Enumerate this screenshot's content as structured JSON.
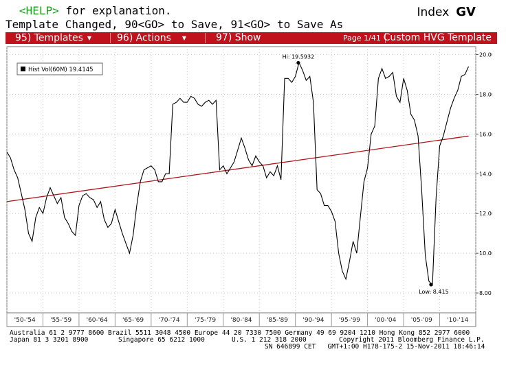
{
  "header": {
    "help_key": "<HELP>",
    "help_rest": " for explanation.",
    "status_line": "Template Changed, 90<GO> to Save, 91<GO> to Save As",
    "index_label": "Index",
    "ticker": "GV"
  },
  "menu": {
    "templates": "95) Templates",
    "actions": "96) Actions",
    "show": "97) Show",
    "page": "Page 1/41",
    "template_name": "Custom HVG Template"
  },
  "footer": {
    "line1": "Australia 61 2 9777 8600 Brazil 5511 3048 4500 Europe 44 20 7330 7500 Germany 49 69 9204 1210 Hong Kong 852 2977 6000",
    "line2a": "Japan 81 3 3201 8900",
    "line2b": "Singapore 65 6212 1000",
    "line2c": "U.S. 1 212 318 2000",
    "line2d": "Copyright 2011 Bloomberg Finance L.P.",
    "line3": "SN 646899 CET   GMT+1:00 H178-175-2 15-Nov-2011 18:46:14"
  },
  "colors": {
    "menubar": "#c0121c",
    "help": "#17a117",
    "trend": "#b0151b",
    "series": "#000000"
  },
  "chart_data": {
    "type": "line",
    "legend": {
      "label": "Hist Vol(60M)",
      "value": "19.4145",
      "placement": "top-left"
    },
    "xlim": [
      1950,
      2015
    ],
    "ylim": [
      7.0,
      20.4
    ],
    "yticks": [
      8.0,
      10.0,
      12.0,
      14.0,
      16.0,
      18.0,
      20.0
    ],
    "ytick_labels": [
      "8.00",
      "10.00",
      "12.00",
      "14.00",
      "16.00",
      "18.00",
      "20.00"
    ],
    "xticks": [
      1950,
      1955,
      1960,
      1965,
      1970,
      1975,
      1980,
      1985,
      1990,
      1995,
      2000,
      2005,
      2010,
      2015
    ],
    "xtick_labels": [
      "'50-'54",
      "'55-'59",
      "'60-'64",
      "'65-'69",
      "'70-'74",
      "'75-'79",
      "'80-'84",
      "'85-'89",
      "'90-'94",
      "'95-'99",
      "'00-'04",
      "'05-'09",
      "'10-'14"
    ],
    "grid": true,
    "annotations": [
      {
        "text": "Hi: 19.5932",
        "x": 1990.4,
        "y": 19.59
      },
      {
        "text": "Low: 8.415",
        "x": 2008.8,
        "y": 8.42
      }
    ],
    "trend": {
      "x": [
        1950,
        2014
      ],
      "y": [
        12.6,
        15.9
      ]
    },
    "series": [
      {
        "x": [
          1950.0,
          1950.5,
          1951.0,
          1951.5,
          1952.0,
          1952.5,
          1953.0,
          1953.5,
          1954.0,
          1954.5,
          1955.0,
          1955.5,
          1956.0,
          1956.5,
          1957.0,
          1957.5,
          1958.0,
          1958.5,
          1959.0,
          1959.5,
          1960.0,
          1960.5,
          1961.0,
          1961.5,
          1962.0,
          1962.5,
          1963.0,
          1963.5,
          1964.0,
          1964.5,
          1965.0,
          1965.5,
          1966.0,
          1966.5,
          1967.0,
          1967.5,
          1968.0,
          1968.5,
          1969.0,
          1969.5,
          1970.0,
          1970.5,
          1971.0,
          1971.5,
          1972.0,
          1972.5,
          1973.0,
          1973.5,
          1974.0,
          1974.5,
          1975.0,
          1975.5,
          1976.0,
          1976.5,
          1977.0,
          1977.5,
          1978.0,
          1978.5,
          1979.0,
          1979.5,
          1980.0,
          1980.5,
          1981.0,
          1981.5,
          1982.0,
          1982.5,
          1983.0,
          1983.5,
          1984.0,
          1984.5,
          1985.0,
          1985.5,
          1986.0,
          1986.5,
          1987.0,
          1987.5,
          1988.0,
          1988.5,
          1989.0,
          1989.5,
          1990.0,
          1990.5,
          1991.0,
          1991.5,
          1992.0,
          1992.5,
          1993.0,
          1993.5,
          1994.0,
          1994.5,
          1995.0,
          1995.5,
          1996.0,
          1996.5,
          1997.0,
          1997.5,
          1998.0,
          1998.5,
          1999.0,
          1999.5,
          2000.0,
          2000.5,
          2001.0,
          2001.5,
          2002.0,
          2002.5,
          2003.0,
          2003.5,
          2004.0,
          2004.5,
          2005.0,
          2005.5,
          2006.0,
          2006.5,
          2007.0,
          2007.5,
          2008.0,
          2008.5,
          2009.0,
          2009.5,
          2010.0,
          2010.5,
          2011.0,
          2011.5,
          2012.0,
          2012.5,
          2013.0,
          2013.5,
          2014.0
        ],
        "y": [
          15.1,
          14.8,
          14.2,
          13.8,
          13.0,
          12.2,
          11.0,
          10.6,
          11.8,
          12.3,
          12.0,
          12.8,
          13.3,
          12.9,
          12.5,
          12.8,
          11.8,
          11.5,
          11.1,
          10.9,
          12.4,
          12.9,
          13.0,
          12.8,
          12.7,
          12.3,
          12.6,
          11.7,
          11.3,
          11.5,
          12.2,
          11.6,
          11.0,
          10.5,
          10.0,
          10.9,
          12.4,
          13.6,
          14.2,
          14.3,
          14.4,
          14.2,
          13.6,
          13.6,
          14.0,
          14.0,
          17.5,
          17.6,
          17.8,
          17.6,
          17.6,
          17.9,
          17.8,
          17.5,
          17.4,
          17.6,
          17.7,
          17.5,
          17.7,
          14.2,
          14.4,
          14.0,
          14.3,
          14.6,
          15.2,
          15.8,
          15.3,
          14.7,
          14.4,
          14.9,
          14.6,
          14.4,
          13.8,
          14.1,
          13.9,
          14.4,
          13.7,
          18.8,
          18.8,
          18.6,
          18.9,
          19.6,
          19.2,
          18.7,
          18.9,
          17.6,
          13.2,
          13.0,
          12.4,
          12.4,
          12.1,
          11.6,
          10.0,
          9.1,
          8.7,
          9.6,
          10.6,
          10.0,
          11.8,
          13.6,
          14.3,
          16.0,
          16.4,
          18.8,
          19.3,
          18.8,
          18.9,
          19.1,
          17.9,
          17.6,
          18.8,
          18.2,
          17.0,
          16.7,
          15.9,
          13.2,
          9.9,
          8.6,
          8.4,
          12.8,
          15.4,
          15.9,
          16.6,
          17.3,
          17.8,
          18.2,
          18.9,
          19.0,
          19.4
        ]
      }
    ]
  }
}
